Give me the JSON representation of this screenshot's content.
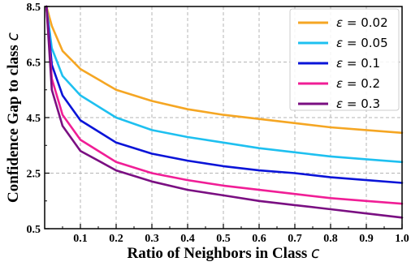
{
  "chart_data": {
    "type": "line",
    "xlabel": "Ratio of Neighbors in Class ",
    "xlabel_var": "c",
    "ylabel": "Confidence Gap to class ",
    "ylabel_var": "c",
    "xlim": [
      0,
      1.0
    ],
    "ylim": [
      0.5,
      8.5
    ],
    "xticks": [
      0.1,
      0.2,
      0.3,
      0.4,
      0.5,
      0.6,
      0.7,
      0.8,
      0.9,
      1.0
    ],
    "xtick_labels": [
      "0.1",
      "0.2",
      "0.3",
      "0.4",
      "0.5",
      "0.6",
      "0.7",
      "0.8",
      "0.9",
      "1.0"
    ],
    "yticks": [
      0.5,
      2.5,
      4.5,
      6.5,
      8.5
    ],
    "ytick_labels": [
      "0.5",
      "2.5",
      "4.5",
      "6.5",
      "8.5"
    ],
    "grid": true,
    "legend_position": "top-right",
    "x": [
      0.005,
      0.02,
      0.05,
      0.1,
      0.2,
      0.3,
      0.4,
      0.5,
      0.6,
      0.7,
      0.8,
      0.9,
      1.0
    ],
    "series": [
      {
        "name": "ε = 0.02",
        "legend_symbol": "ε",
        "legend_value": " = 0.02",
        "color": "#f5a623",
        "values": [
          8.5,
          7.8,
          6.9,
          6.25,
          5.5,
          5.1,
          4.8,
          4.6,
          4.45,
          4.3,
          4.15,
          4.05,
          3.95
        ]
      },
      {
        "name": "ε = 0.05",
        "legend_symbol": "ε",
        "legend_value": " = 0.05",
        "color": "#1ec0f0",
        "values": [
          8.5,
          7.0,
          6.0,
          5.3,
          4.5,
          4.05,
          3.8,
          3.6,
          3.4,
          3.25,
          3.1,
          3.0,
          2.9
        ]
      },
      {
        "name": "ε = 0.1",
        "legend_symbol": "ε",
        "legend_value": " = 0.1",
        "color": "#0a14d8",
        "values": [
          8.5,
          6.4,
          5.3,
          4.4,
          3.6,
          3.2,
          2.95,
          2.75,
          2.6,
          2.5,
          2.35,
          2.25,
          2.15
        ]
      },
      {
        "name": "ε = 0.2",
        "legend_symbol": "ε",
        "legend_value": " = 0.2",
        "color": "#f01e96",
        "values": [
          8.5,
          5.9,
          4.6,
          3.7,
          2.9,
          2.5,
          2.25,
          2.05,
          1.9,
          1.75,
          1.6,
          1.5,
          1.4
        ]
      },
      {
        "name": "ε = 0.3",
        "legend_symbol": "ε",
        "legend_value": " = 0.3",
        "color": "#7a0f82",
        "values": [
          8.5,
          5.5,
          4.2,
          3.3,
          2.6,
          2.2,
          1.9,
          1.7,
          1.5,
          1.35,
          1.2,
          1.05,
          0.9
        ]
      }
    ]
  }
}
